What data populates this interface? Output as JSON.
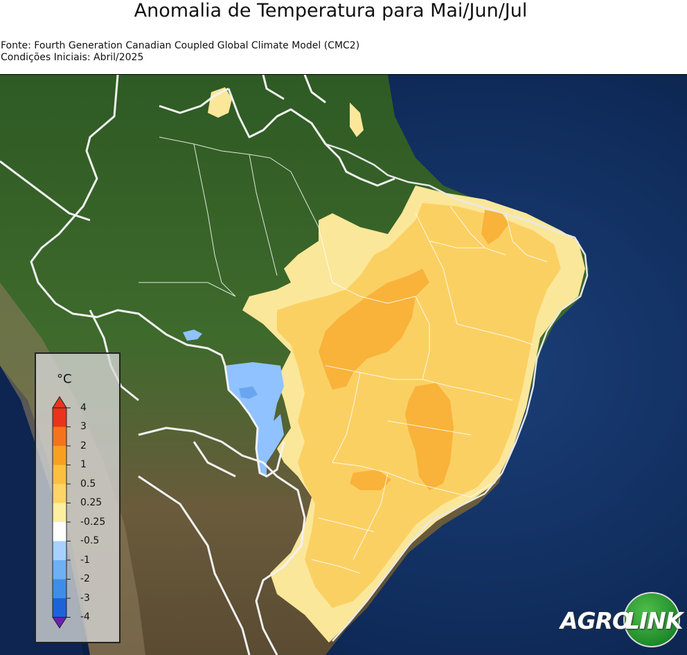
{
  "title": "Anomalia de Temperatura para Mai/Jun/Jul",
  "source_line": "Fonte: Fourth Generation Canadian Coupled Global Climate Model (CMC2)",
  "initial_conditions_line": "Condições Iniciais: Abril/2025",
  "legend": {
    "unit": "°C",
    "ticks": [
      "4",
      "3",
      "2",
      "1",
      "0.5",
      "0.25",
      "-0.25",
      "-0.5",
      "-1",
      "-2",
      "-3",
      "-4"
    ],
    "colors": [
      "#e8341c",
      "#f5731c",
      "#f9a023",
      "#fbc040",
      "#fdd666",
      "#fff0a0",
      "#ffffff",
      "#a8d0ff",
      "#6fb0f5",
      "#3d8ee8",
      "#1c63d9",
      "#1a3fc0",
      "#6a1fb0"
    ]
  },
  "logo": {
    "part1": "AGRO",
    "part2": "LINK"
  },
  "colors": {
    "ocean": "#0e2a55",
    "land_forest": "#3a6028",
    "land_dry": "#6b5a3e",
    "anom_025_05": "#fbe79a",
    "anom_05_1": "#fbd063",
    "anom_1_2": "#f9b33a",
    "anom_neg": "#8fc2ff",
    "border": "#eeeeee"
  }
}
